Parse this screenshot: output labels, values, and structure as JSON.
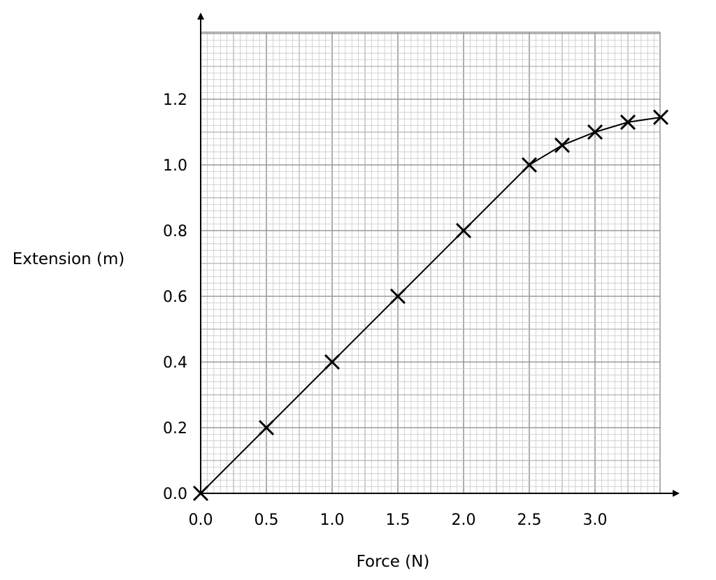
{
  "chart_data": {
    "type": "line",
    "xlabel": "Force (N)",
    "ylabel": "Extension (m)",
    "xlim": [
      0,
      3.5
    ],
    "ylim": [
      0,
      1.4
    ],
    "xticks": [
      "0.0",
      "0.5",
      "1.0",
      "1.5",
      "2.0",
      "2.5",
      "3.0"
    ],
    "yticks": [
      "0.0",
      "0.2",
      "0.4",
      "0.6",
      "0.8",
      "1.0",
      "1.2"
    ],
    "grid": true,
    "marker": "cross",
    "points": {
      "x": [
        0.0,
        0.5,
        1.0,
        1.5,
        2.0,
        2.5,
        2.75,
        3.0,
        3.25,
        3.5
      ],
      "y": [
        0.0,
        0.2,
        0.4,
        0.6,
        0.8,
        1.0,
        1.06,
        1.1,
        1.13,
        1.145
      ]
    },
    "colors": {
      "minor_grid": "#c8c8c8",
      "major_grid": "#9a9a9a",
      "line": "#000000"
    }
  }
}
